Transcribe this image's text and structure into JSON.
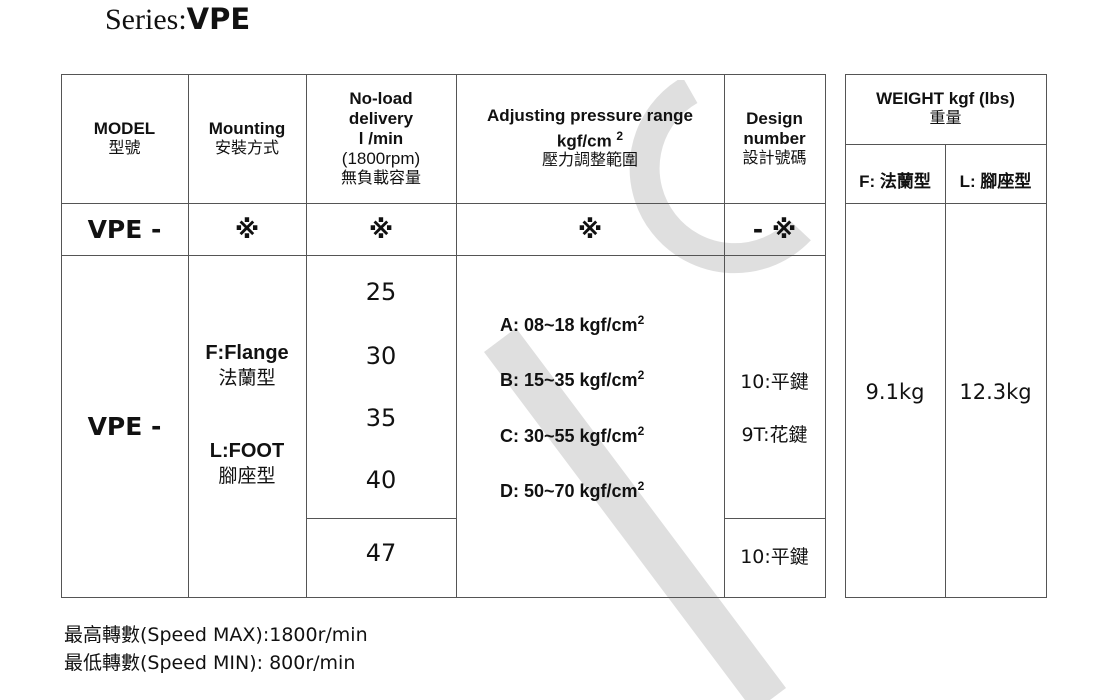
{
  "title": {
    "prefix": "Series:",
    "model": "VPE"
  },
  "headers": {
    "model": "MODEL",
    "model_zh": "型號",
    "mounting": "Mounting",
    "mounting_zh": "安裝方式",
    "delivery_lines": [
      "No-load",
      "delivery",
      "l /min",
      "(1800rpm)"
    ],
    "delivery_zh": "無負載容量",
    "pressure": "Adjusting pressure range",
    "pressure_unit": "kgf/cm",
    "pressure_sup": "2",
    "pressure_zh": "壓力調整範圍",
    "design": "Design",
    "design2": "number",
    "design_zh": "設計號碼"
  },
  "code_row": {
    "model": "VPE -",
    "mounting": "※",
    "delivery": "※",
    "pressure": "※",
    "design": "- ※"
  },
  "body": {
    "model": "VPE -",
    "mounting": {
      "f": "F:Flange",
      "f_zh": "法蘭型",
      "l": "L:FOOT",
      "l_zh": "腳座型"
    },
    "deliveries": [
      "25",
      "30",
      "35",
      "40"
    ],
    "delivery_extra": "47",
    "pressures": [
      {
        "label": "A: 08~18 kgf/cm",
        "sup": "2"
      },
      {
        "label": "B: 15~35 kgf/cm",
        "sup": "2"
      },
      {
        "label": "C: 30~55 kgf/cm",
        "sup": "2"
      },
      {
        "label": "D: 50~70 kgf/cm",
        "sup": "2"
      }
    ],
    "designs": [
      "10:平鍵",
      "9T:花鍵"
    ],
    "design_extra": "10:平鍵"
  },
  "weight": {
    "title": "WEIGHT kgf (lbs)",
    "title_zh": "重量",
    "f_label": "F: 法蘭型",
    "l_label": "L: 腳座型",
    "f_value": "9.1kg",
    "l_value": "12.3kg"
  },
  "footer": {
    "max": "最高轉數(Speed MAX):1800r/min",
    "min": "最低轉數(Speed MIN): 800r/min"
  }
}
